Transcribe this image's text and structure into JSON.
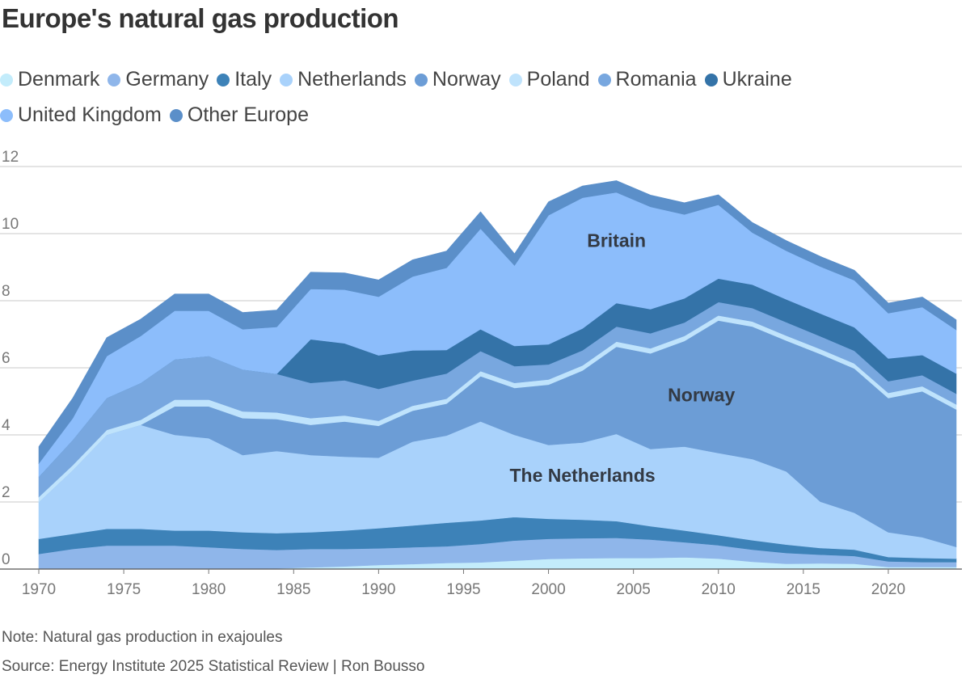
{
  "title": "Europe's natural gas production",
  "note": "Note: Natural gas production in exajoules",
  "source": "Source: Energy Institute 2025 Statistical Review | Ron Bousso",
  "legend": [
    {
      "label": "Denmark",
      "color": "#c3ecfb"
    },
    {
      "label": "Germany",
      "color": "#8fb6ea"
    },
    {
      "label": "Italy",
      "color": "#3d82b8"
    },
    {
      "label": "Netherlands",
      "color": "#a9d2fb"
    },
    {
      "label": "Norway",
      "color": "#6c9dd6"
    },
    {
      "label": "Poland",
      "color": "#bfe3fc"
    },
    {
      "label": "Romania",
      "color": "#78a7df"
    },
    {
      "label": "Ukraine",
      "color": "#3473a8"
    },
    {
      "label": "United Kingdom",
      "color": "#8cbdfb"
    },
    {
      "label": "Other Europe",
      "color": "#5b8fc9"
    }
  ],
  "chart_data": {
    "type": "area",
    "stacked": true,
    "title": "Europe's natural gas production",
    "ylabel": "",
    "xlabel": "",
    "ylim": [
      0,
      12
    ],
    "yticks": [
      0,
      2,
      4,
      6,
      8,
      10,
      12
    ],
    "xticks": [
      1970,
      1975,
      1980,
      1985,
      1990,
      1995,
      2000,
      2005,
      2010,
      2015,
      2020
    ],
    "grid": true,
    "legend_position": "top",
    "x": [
      1970,
      1972,
      1974,
      1976,
      1978,
      1980,
      1982,
      1984,
      1986,
      1988,
      1990,
      1992,
      1994,
      1996,
      1998,
      2000,
      2002,
      2004,
      2006,
      2008,
      2010,
      2012,
      2014,
      2016,
      2018,
      2020,
      2022,
      2024
    ],
    "annotations": [
      {
        "text": "Britain",
        "x": 2004,
        "y": 9.6
      },
      {
        "text": "Norway",
        "x": 2009,
        "y": 5.0
      },
      {
        "text": "The Netherlands",
        "x": 2002,
        "y": 2.6
      }
    ],
    "series": [
      {
        "name": "Denmark",
        "color": "#c3ecfb",
        "values": [
          0,
          0,
          0,
          0,
          0,
          0,
          0,
          0.02,
          0.05,
          0.08,
          0.12,
          0.15,
          0.18,
          0.2,
          0.25,
          0.3,
          0.32,
          0.33,
          0.33,
          0.35,
          0.31,
          0.22,
          0.16,
          0.17,
          0.16,
          0.06,
          0.06,
          0.06
        ]
      },
      {
        "name": "Germany",
        "color": "#8fb6ea",
        "values": [
          0.45,
          0.6,
          0.7,
          0.7,
          0.7,
          0.65,
          0.6,
          0.55,
          0.55,
          0.52,
          0.5,
          0.5,
          0.5,
          0.55,
          0.6,
          0.6,
          0.6,
          0.6,
          0.55,
          0.45,
          0.4,
          0.36,
          0.32,
          0.26,
          0.23,
          0.17,
          0.15,
          0.15
        ]
      },
      {
        "name": "Italy",
        "color": "#3d82b8",
        "values": [
          0.45,
          0.45,
          0.5,
          0.5,
          0.45,
          0.5,
          0.5,
          0.5,
          0.5,
          0.55,
          0.6,
          0.65,
          0.7,
          0.7,
          0.7,
          0.6,
          0.55,
          0.5,
          0.4,
          0.35,
          0.3,
          0.28,
          0.25,
          0.2,
          0.19,
          0.13,
          0.12,
          0.1
        ]
      },
      {
        "name": "Netherlands",
        "color": "#a9d2fb",
        "values": [
          1.1,
          1.9,
          2.8,
          3.1,
          2.85,
          2.75,
          2.3,
          2.45,
          2.3,
          2.2,
          2.1,
          2.5,
          2.6,
          2.95,
          2.45,
          2.2,
          2.3,
          2.6,
          2.3,
          2.5,
          2.45,
          2.42,
          2.18,
          1.38,
          1.1,
          0.74,
          0.62,
          0.35
        ]
      },
      {
        "name": "Norway",
        "color": "#6c9dd6",
        "values": [
          0,
          0,
          0,
          0,
          0.85,
          0.95,
          1.1,
          0.95,
          0.9,
          1.05,
          0.95,
          0.92,
          0.95,
          1.35,
          1.4,
          1.8,
          2.15,
          2.6,
          2.85,
          3.15,
          3.95,
          3.95,
          3.9,
          4.4,
          4.3,
          4.0,
          4.35,
          4.1
        ]
      },
      {
        "name": "Poland",
        "color": "#bfe3fc",
        "values": [
          0.15,
          0.15,
          0.15,
          0.15,
          0.2,
          0.2,
          0.2,
          0.2,
          0.2,
          0.18,
          0.15,
          0.15,
          0.15,
          0.15,
          0.15,
          0.15,
          0.15,
          0.15,
          0.15,
          0.15,
          0.15,
          0.15,
          0.15,
          0.15,
          0.15,
          0.15,
          0.15,
          0.15
        ]
      },
      {
        "name": "Romania",
        "color": "#78a7df",
        "values": [
          0.6,
          0.75,
          0.95,
          1.1,
          1.2,
          1.3,
          1.25,
          1.15,
          1.05,
          1.05,
          0.95,
          0.75,
          0.75,
          0.6,
          0.5,
          0.45,
          0.45,
          0.45,
          0.45,
          0.4,
          0.4,
          0.4,
          0.4,
          0.38,
          0.38,
          0.35,
          0.33,
          0.32
        ]
      },
      {
        "name": "Ukraine",
        "color": "#3473a8",
        "values": [
          0,
          0,
          0,
          0,
          0,
          0,
          0,
          0,
          1.3,
          1.1,
          1.0,
          0.9,
          0.7,
          0.65,
          0.6,
          0.6,
          0.65,
          0.7,
          0.72,
          0.72,
          0.7,
          0.7,
          0.68,
          0.68,
          0.7,
          0.68,
          0.6,
          0.6
        ]
      },
      {
        "name": "United Kingdom",
        "color": "#8cbdfb",
        "values": [
          0.4,
          0.65,
          1.25,
          1.4,
          1.45,
          1.35,
          1.2,
          1.4,
          1.5,
          1.6,
          1.75,
          2.2,
          2.45,
          3.0,
          2.4,
          3.85,
          3.9,
          3.3,
          3.05,
          2.5,
          2.2,
          1.55,
          1.45,
          1.4,
          1.4,
          1.35,
          1.43,
          1.3
        ]
      },
      {
        "name": "Other Europe",
        "color": "#5b8fc9",
        "values": [
          0.5,
          0.6,
          0.55,
          0.5,
          0.5,
          0.5,
          0.5,
          0.5,
          0.5,
          0.5,
          0.5,
          0.5,
          0.5,
          0.5,
          0.35,
          0.4,
          0.35,
          0.35,
          0.35,
          0.35,
          0.3,
          0.3,
          0.3,
          0.3,
          0.3,
          0.3,
          0.3,
          0.3
        ]
      }
    ]
  }
}
